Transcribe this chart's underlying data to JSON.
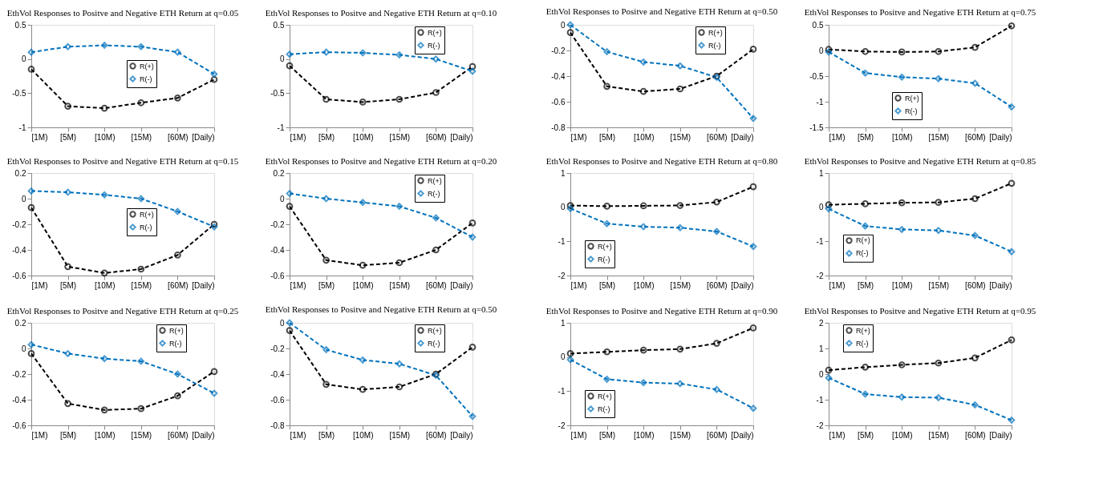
{
  "chart_data": [
    {
      "type": "line",
      "title": "EthVol Responses to Positve and Negative ETH Return at q=0.05",
      "categories": [
        "[1M)",
        "[5M)",
        "[10M)",
        "[15M)",
        "[60M)",
        "[Daily)"
      ],
      "ylim": [
        -1,
        0.5
      ],
      "yticks": [
        -1,
        -0.5,
        0,
        0.5
      ],
      "legend": "center",
      "line_style": "dashed",
      "series": [
        {
          "name": "R(+)",
          "color": "#000000",
          "marker": "circle",
          "values": [
            -0.15,
            -0.69,
            -0.72,
            -0.64,
            -0.57,
            -0.3
          ]
        },
        {
          "name": "R(-)",
          "color": "#0072bd",
          "marker": "diamond",
          "values": [
            0.1,
            0.18,
            0.2,
            0.18,
            0.1,
            -0.22
          ]
        }
      ]
    },
    {
      "type": "line",
      "title": "EthVol Responses to Positve and Negative ETH Return at q=0.10",
      "categories": [
        "[1M)",
        "[5M)",
        "[10M)",
        "[15M)",
        "[60M)",
        "[Daily)"
      ],
      "ylim": [
        -1,
        0.5
      ],
      "yticks": [
        -1,
        -0.5,
        0,
        0.5
      ],
      "legend": "top right",
      "line_style": "dashed",
      "series": [
        {
          "name": "R(+)",
          "color": "#000000",
          "marker": "circle",
          "values": [
            -0.1,
            -0.59,
            -0.63,
            -0.59,
            -0.49,
            -0.11
          ]
        },
        {
          "name": "R(-)",
          "color": "#0072bd",
          "marker": "diamond",
          "values": [
            0.07,
            0.1,
            0.09,
            0.06,
            0.0,
            -0.18
          ]
        }
      ]
    },
    {
      "type": "line",
      "title": "EthVol Responses to Positve and Negative ETH Return at q=0.50",
      "categories": [
        "[1M)",
        "[5M)",
        "[10M)",
        "[15M)",
        "[60M)",
        "[Daily)"
      ],
      "ylim": [
        -0.8,
        0
      ],
      "yticks": [
        -0.8,
        -0.6,
        -0.4,
        -0.2,
        0
      ],
      "legend": "top right",
      "line_style": "dashed",
      "series": [
        {
          "name": "R(+)",
          "color": "#000000",
          "marker": "circle",
          "values": [
            -0.06,
            -0.48,
            -0.52,
            -0.5,
            -0.4,
            -0.19
          ]
        },
        {
          "name": "R(-)",
          "color": "#0072bd",
          "marker": "diamond",
          "values": [
            0.0,
            -0.21,
            -0.29,
            -0.32,
            -0.41,
            -0.73
          ]
        }
      ]
    },
    {
      "type": "line",
      "title": "EthVol Responses to Positve and Negative ETH Return at q=0.75",
      "categories": [
        "[1M)",
        "[5M)",
        "[10M)",
        "[15M)",
        "[60M)",
        "[Daily)"
      ],
      "ylim": [
        -1.5,
        0.5
      ],
      "yticks": [
        -1.5,
        -1,
        -0.5,
        0,
        0.5
      ],
      "legend": "bottom",
      "line_style": "dashed",
      "series": [
        {
          "name": "R(+)",
          "color": "#000000",
          "marker": "circle",
          "values": [
            0.02,
            -0.02,
            -0.03,
            -0.02,
            0.06,
            0.48
          ]
        },
        {
          "name": "R(-)",
          "color": "#0072bd",
          "marker": "diamond",
          "values": [
            -0.03,
            -0.44,
            -0.52,
            -0.55,
            -0.64,
            -1.1
          ]
        }
      ]
    },
    {
      "type": "line",
      "title": "EthVol Responses to Positve and Negative ETH Return at q=0.15",
      "categories": [
        "[1M)",
        "[5M)",
        "[10M)",
        "[15M)",
        "[60M)",
        "[Daily)"
      ],
      "ylim": [
        -0.6,
        0.2
      ],
      "yticks": [
        -0.6,
        -0.4,
        -0.2,
        0,
        0.2
      ],
      "legend": "center",
      "line_style": "dashed",
      "series": [
        {
          "name": "R(+)",
          "color": "#000000",
          "marker": "circle",
          "values": [
            -0.07,
            -0.53,
            -0.58,
            -0.55,
            -0.44,
            -0.2
          ]
        },
        {
          "name": "R(-)",
          "color": "#0072bd",
          "marker": "diamond",
          "values": [
            0.06,
            0.05,
            0.03,
            0.0,
            -0.1,
            -0.22
          ]
        }
      ]
    },
    {
      "type": "line",
      "title": "EthVol Responses to Positve and Negative ETH Return at q=0.20",
      "categories": [
        "[1M)",
        "[5M)",
        "[10M)",
        "[15M)",
        "[60M)",
        "[Daily)"
      ],
      "ylim": [
        -0.6,
        0.2
      ],
      "yticks": [
        -0.6,
        -0.4,
        -0.2,
        0,
        0.2
      ],
      "legend": "top right",
      "line_style": "dashed",
      "series": [
        {
          "name": "R(+)",
          "color": "#000000",
          "marker": "circle",
          "values": [
            -0.06,
            -0.48,
            -0.52,
            -0.5,
            -0.4,
            -0.19
          ]
        },
        {
          "name": "R(-)",
          "color": "#0072bd",
          "marker": "diamond",
          "values": [
            0.04,
            0.0,
            -0.03,
            -0.06,
            -0.15,
            -0.3
          ]
        }
      ]
    },
    {
      "type": "line",
      "title": "EthVol Responses to Positve and Negative ETH Return at q=0.80",
      "categories": [
        "[1M)",
        "[5M)",
        "[10M)",
        "[15M)",
        "[60M)",
        "[Daily)"
      ],
      "ylim": [
        -2,
        1
      ],
      "yticks": [
        -2,
        -1,
        0,
        1
      ],
      "legend": "bottom left",
      "line_style": "dashed",
      "series": [
        {
          "name": "R(+)",
          "color": "#000000",
          "marker": "circle",
          "values": [
            0.05,
            0.03,
            0.04,
            0.05,
            0.15,
            0.6
          ]
        },
        {
          "name": "R(-)",
          "color": "#0072bd",
          "marker": "diamond",
          "values": [
            -0.04,
            -0.48,
            -0.57,
            -0.6,
            -0.71,
            -1.15
          ]
        }
      ]
    },
    {
      "type": "line",
      "title": "EthVol Responses to Positve and Negative ETH Return at q=0.85",
      "categories": [
        "[1M)",
        "[5M)",
        "[10M)",
        "[15M)",
        "[60M)",
        "[Daily)"
      ],
      "ylim": [
        -2,
        1
      ],
      "yticks": [
        -2,
        -1,
        0,
        1
      ],
      "legend": "left",
      "line_style": "dashed",
      "series": [
        {
          "name": "R(+)",
          "color": "#000000",
          "marker": "circle",
          "values": [
            0.07,
            0.1,
            0.13,
            0.14,
            0.25,
            0.7
          ]
        },
        {
          "name": "R(-)",
          "color": "#0072bd",
          "marker": "diamond",
          "values": [
            -0.05,
            -0.55,
            -0.65,
            -0.68,
            -0.83,
            -1.3
          ]
        }
      ]
    },
    {
      "type": "line",
      "title": "EthVol Responses to Positve and Negative ETH Return at q=0.25",
      "categories": [
        "[1M)",
        "[5M)",
        "[10M)",
        "[15M)",
        "[60M)",
        "[Daily)"
      ],
      "ylim": [
        -0.6,
        0.2
      ],
      "yticks": [
        -0.6,
        -0.4,
        -0.2,
        0,
        0.2
      ],
      "legend": "top right",
      "line_style": "dashed",
      "series": [
        {
          "name": "R(+)",
          "color": "#000000",
          "marker": "circle",
          "values": [
            -0.04,
            -0.43,
            -0.48,
            -0.47,
            -0.37,
            -0.18
          ]
        },
        {
          "name": "R(-)",
          "color": "#0072bd",
          "marker": "diamond",
          "values": [
            0.03,
            -0.04,
            -0.08,
            -0.1,
            -0.2,
            -0.35
          ]
        }
      ]
    },
    {
      "type": "line",
      "title": "EthVol Responses to Positve and Negative ETH Return at q=0.50",
      "categories": [
        "[1M)",
        "[5M)",
        "[10M)",
        "[15M)",
        "[60M)",
        "[Daily)"
      ],
      "ylim": [
        -0.8,
        0
      ],
      "yticks": [
        -0.8,
        -0.6,
        -0.4,
        -0.2,
        0
      ],
      "legend": "top right",
      "line_style": "dashed",
      "series": [
        {
          "name": "R(+)",
          "color": "#000000",
          "marker": "circle",
          "values": [
            -0.06,
            -0.48,
            -0.52,
            -0.5,
            -0.4,
            -0.19
          ]
        },
        {
          "name": "R(-)",
          "color": "#0072bd",
          "marker": "diamond",
          "values": [
            0.0,
            -0.21,
            -0.29,
            -0.32,
            -0.41,
            -0.73
          ]
        }
      ]
    },
    {
      "type": "line",
      "title": "EthVol Responses to Positve and Negative ETH Return at q=0.90",
      "categories": [
        "[1M)",
        "[5M)",
        "[10M)",
        "[15M)",
        "[60M)",
        "[Daily)"
      ],
      "ylim": [
        -2,
        1
      ],
      "yticks": [
        -2,
        -1,
        0,
        1
      ],
      "legend": "bottom left",
      "line_style": "dashed",
      "series": [
        {
          "name": "R(+)",
          "color": "#000000",
          "marker": "circle",
          "values": [
            0.1,
            0.15,
            0.2,
            0.23,
            0.4,
            0.85
          ]
        },
        {
          "name": "R(-)",
          "color": "#0072bd",
          "marker": "diamond",
          "values": [
            -0.08,
            -0.65,
            -0.75,
            -0.78,
            -0.95,
            -1.5
          ]
        }
      ]
    },
    {
      "type": "line",
      "title": "EthVol Responses to Positve and Negative ETH Return at q=0.95",
      "categories": [
        "[1M)",
        "[5M)",
        "[10M)",
        "[15M)",
        "[60M)",
        "[Daily)"
      ],
      "ylim": [
        -2,
        2
      ],
      "yticks": [
        -2,
        -1,
        0,
        1,
        2
      ],
      "legend": "top left",
      "line_style": "dashed",
      "series": [
        {
          "name": "R(+)",
          "color": "#000000",
          "marker": "circle",
          "values": [
            0.15,
            0.27,
            0.36,
            0.43,
            0.63,
            1.33
          ]
        },
        {
          "name": "R(-)",
          "color": "#0072bd",
          "marker": "diamond",
          "values": [
            -0.15,
            -0.78,
            -0.9,
            -0.92,
            -1.2,
            -1.8
          ]
        }
      ]
    }
  ]
}
